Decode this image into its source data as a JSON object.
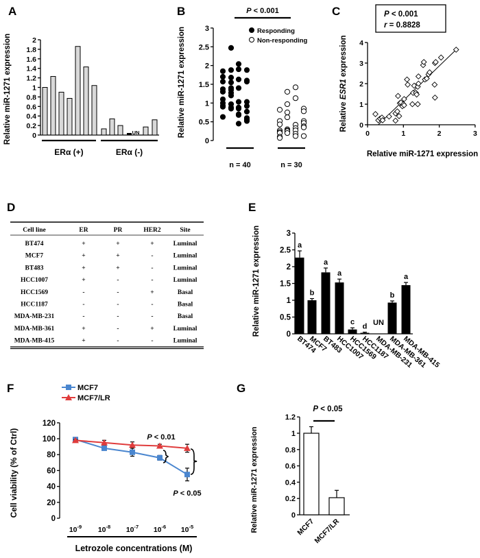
{
  "panels": {
    "A": "A",
    "B": "B",
    "C": "C",
    "D": "D",
    "E": "E",
    "F": "F",
    "G": "G"
  },
  "chart_data": [
    {
      "panel": "A",
      "type": "bar",
      "ylabel": "Relative miR-1271 expression",
      "ylim": [
        0,
        2
      ],
      "yticks": [
        "0",
        "0.2",
        "0.4",
        "0.6",
        "0.8",
        "1",
        "1.2",
        "1.4",
        "1.6",
        "1.8",
        "2"
      ],
      "groups": [
        {
          "label": "ERα (+)",
          "values": [
            1.0,
            1.23,
            0.9,
            0.77,
            1.86,
            1.43,
            1.04
          ]
        },
        {
          "label": "ERα (-)",
          "values": [
            0.13,
            0.34,
            0.2,
            null,
            0.17,
            0.32
          ]
        }
      ],
      "undetected_label": "UN",
      "bar_color": "#d9d9d9"
    },
    {
      "panel": "B",
      "type": "scatter",
      "ylabel": "Relative miR-1271 expression",
      "ylim": [
        0,
        3
      ],
      "yticks": [
        "0",
        "0.5",
        "1",
        "1.5",
        "2",
        "2.5",
        "3"
      ],
      "annotation": "P < 0.001",
      "legend": [
        "Responding",
        "Non-responding"
      ],
      "legend_position": "top-right",
      "series": [
        {
          "name": "Responding",
          "n_label": "n = 40",
          "columns": [
            [
              1.85,
              1.7,
              1.57,
              1.37,
              1.3,
              1.1,
              1.0,
              0.93,
              0.9,
              0.63
            ],
            [
              2.47,
              1.88,
              1.68,
              1.55,
              1.4,
              1.35,
              1.27,
              1.2,
              0.97,
              0.88,
              0.85
            ],
            [
              2.04,
              1.9,
              1.63,
              1.4,
              1.03,
              0.88,
              0.85,
              0.7,
              0.68,
              0.45
            ],
            [
              1.88,
              1.6,
              1.57,
              1.03,
              0.92,
              0.77,
              0.6,
              0.55,
              0.52
            ]
          ]
        },
        {
          "name": "Non-responding",
          "n_label": "n = 30",
          "columns": [
            [
              0.82,
              0.52,
              0.43,
              0.27,
              0.23,
              0.2,
              0.1,
              0.07
            ],
            [
              1.3,
              0.97,
              0.75,
              0.62,
              0.3,
              0.27,
              0.25,
              0.2
            ],
            [
              1.42,
              1.13,
              0.42,
              0.33,
              0.27,
              0.18,
              0.12
            ],
            [
              0.85,
              0.78,
              0.52,
              0.47,
              0.38,
              0.35,
              0.12
            ]
          ]
        }
      ]
    },
    {
      "panel": "C",
      "type": "scatter",
      "xlabel": "Relative miR-1271 expression",
      "ylabel_pre": "Relative ",
      "ylabel_italic": "ESR1",
      "ylabel_post": " expression",
      "xlim": [
        0,
        3
      ],
      "ylim": [
        0,
        4
      ],
      "xticks": [
        "0",
        "1",
        "2",
        "3"
      ],
      "yticks": [
        "0",
        "1",
        "2",
        "3",
        "4"
      ],
      "stats": {
        "p": "P < 0.001",
        "r": "r = 0.8828"
      },
      "fit": {
        "slope": 1.68,
        "intercept": -0.5,
        "x_range": [
          0.3,
          2.47
        ]
      },
      "points": [
        [
          0.22,
          0.52
        ],
        [
          0.3,
          0.22
        ],
        [
          0.35,
          0.3
        ],
        [
          0.4,
          0.35
        ],
        [
          0.42,
          0.22
        ],
        [
          0.6,
          0.4
        ],
        [
          0.78,
          0.55
        ],
        [
          0.78,
          0.2
        ],
        [
          0.83,
          0.65
        ],
        [
          0.85,
          1.4
        ],
        [
          0.88,
          0.42
        ],
        [
          0.9,
          1.05
        ],
        [
          0.93,
          1.08
        ],
        [
          0.97,
          0.9
        ],
        [
          1.0,
          1.0
        ],
        [
          1.02,
          0.95
        ],
        [
          1.02,
          1.25
        ],
        [
          1.1,
          2.2
        ],
        [
          1.12,
          1.95
        ],
        [
          1.25,
          1.0
        ],
        [
          1.27,
          1.55
        ],
        [
          1.3,
          1.9
        ],
        [
          1.35,
          1.55
        ],
        [
          1.37,
          1.47
        ],
        [
          1.4,
          1.85
        ],
        [
          1.4,
          1.0
        ],
        [
          1.42,
          2.35
        ],
        [
          1.42,
          2.0
        ],
        [
          1.55,
          2.9
        ],
        [
          1.57,
          3.05
        ],
        [
          1.6,
          2.2
        ],
        [
          1.65,
          2.25
        ],
        [
          1.7,
          2.45
        ],
        [
          1.73,
          2.55
        ],
        [
          1.87,
          1.95
        ],
        [
          1.88,
          1.32
        ],
        [
          1.88,
          3.0
        ],
        [
          1.9,
          3.05
        ],
        [
          2.05,
          3.27
        ],
        [
          2.47,
          3.65
        ]
      ]
    },
    {
      "panel": "D",
      "type": "table",
      "headers": [
        "Cell line",
        "ER",
        "PR",
        "HER2",
        "Site"
      ],
      "rows": [
        [
          "BT474",
          "+",
          "+",
          "+",
          "Luminal"
        ],
        [
          "MCF7",
          "+",
          "+",
          "-",
          "Luminal"
        ],
        [
          "BT483",
          "+",
          "+",
          "-",
          "Luminal"
        ],
        [
          "HCC1007",
          "+",
          "-",
          "-",
          "Luminal"
        ],
        [
          "HCC1569",
          "-",
          "-",
          "+",
          "Basal"
        ],
        [
          "HCC1187",
          "-",
          "-",
          "-",
          "Basal"
        ],
        [
          "MDA-MB-231",
          "-",
          "-",
          "-",
          "Basal"
        ],
        [
          "MDA-MB-361",
          "+",
          "-",
          "+",
          "Luminal"
        ],
        [
          "MDA-MB-415",
          "+",
          "-",
          "-",
          "Luminal"
        ]
      ]
    },
    {
      "panel": "E",
      "type": "bar",
      "ylabel": "Relative miR-1271 expression",
      "ylim": [
        0,
        3
      ],
      "yticks": [
        "0",
        "0.5",
        "1",
        "1.5",
        "2",
        "2.5",
        "3"
      ],
      "categories": [
        "BT474",
        "MCF7",
        "BT483",
        "HCC1007",
        "HCC1569",
        "HCC1187",
        "MDA-MB-231",
        "MDA-MB-361",
        "MDA-MB-415"
      ],
      "values": [
        2.27,
        1.0,
        1.83,
        1.53,
        0.13,
        0.03,
        null,
        0.93,
        1.45
      ],
      "errors": [
        0.2,
        0.05,
        0.13,
        0.1,
        0.05,
        0.02,
        null,
        0.05,
        0.08
      ],
      "labels": [
        "a",
        "b",
        "a",
        "a",
        "c",
        "d",
        "UN",
        "b",
        "a"
      ],
      "bar_color": "#000000"
    },
    {
      "panel": "F",
      "type": "line",
      "xlabel": "Letrozole concentrations (M)",
      "ylabel": "Cell viability (% of Ctrl)",
      "ylim": [
        0,
        120
      ],
      "yticks": [
        "0",
        "20",
        "40",
        "60",
        "80",
        "100",
        "120"
      ],
      "x_base": "10",
      "x_exponents": [
        "-9",
        "-8",
        "-7",
        "-6",
        "-5"
      ],
      "legend_position": "top-left",
      "series": [
        {
          "name": "MCF7",
          "color": "#4a86cf",
          "marker": "square",
          "values": [
            99,
            88,
            83,
            76,
            55
          ],
          "errors": [
            1,
            2,
            5,
            3,
            8
          ]
        },
        {
          "name": "MCF7/LR",
          "color": "#e03c3c",
          "marker": "triangle",
          "values": [
            98,
            95,
            92,
            91,
            88
          ],
          "errors": [
            1,
            3,
            4,
            2,
            5
          ]
        }
      ],
      "annotations": [
        "P < 0.01",
        "P < 0.05"
      ]
    },
    {
      "panel": "G",
      "type": "bar",
      "ylabel": "Relative miR-1271 expression",
      "ylim": [
        0,
        1.2
      ],
      "yticks": [
        "0",
        "0.2",
        "0.4",
        "0.6",
        "0.8",
        "1",
        "1.2"
      ],
      "categories": [
        "MCF7",
        "MCF7/LR"
      ],
      "values": [
        1.0,
        0.21
      ],
      "errors": [
        0.08,
        0.09
      ],
      "annotation": "P < 0.05",
      "bar_color": "#ffffff"
    }
  ]
}
